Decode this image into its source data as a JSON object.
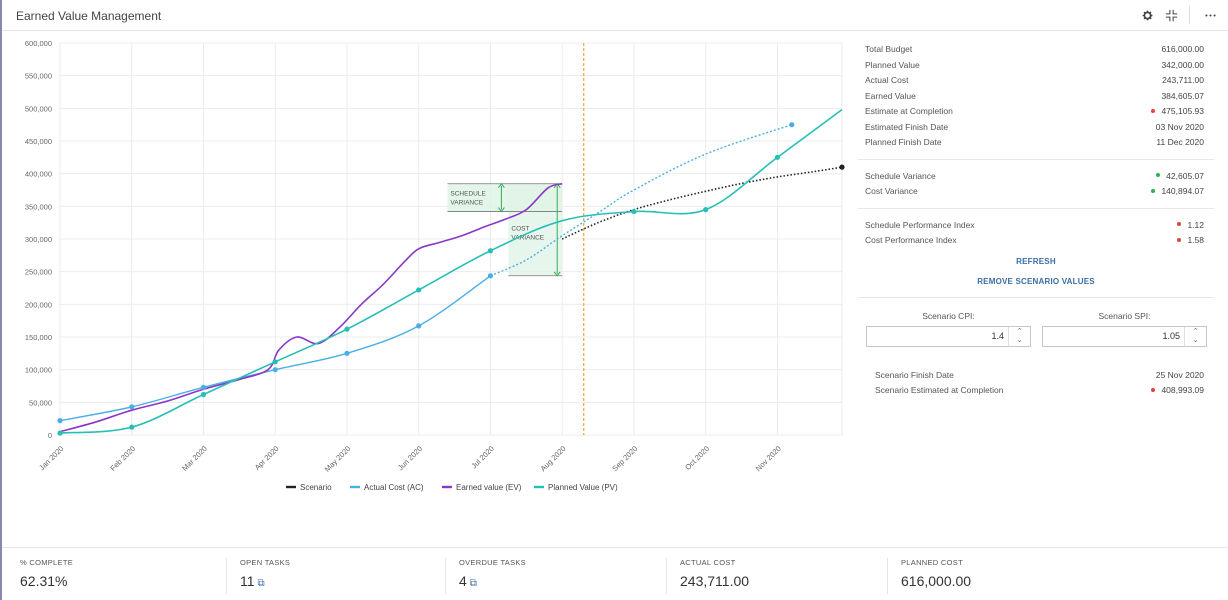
{
  "header": {
    "title": "Earned Value Management"
  },
  "chart_data": {
    "type": "line",
    "xlabel": "",
    "ylabel": "",
    "ylim": [
      0,
      600000
    ],
    "y_ticks": [
      0,
      50000,
      100000,
      150000,
      200000,
      250000,
      300000,
      350000,
      400000,
      450000,
      500000,
      550000,
      600000
    ],
    "y_tick_labels": [
      "0",
      "50,000",
      "100,000",
      "150,000",
      "200,000",
      "250,000",
      "300,000",
      "350,000",
      "400,000",
      "450,000",
      "500,000",
      "550,000",
      "600,000"
    ],
    "x_tick_labels": [
      "Jan 2020",
      "Feb 2020",
      "Mar 2020",
      "Apr 2020",
      "May 2020",
      "Jun 2020",
      "Jul 2020",
      "Aug 2020",
      "Sep 2020",
      "Oct 2020",
      "Nov 2020"
    ],
    "xlim_months": [
      0,
      10.9
    ],
    "grid": true,
    "legend_position": "bottom",
    "colors": {
      "scenario": "#222222",
      "ac": "#4aaee6",
      "ev": "#8a36c9",
      "pv": "#26bfb5",
      "today": "#f5a03a",
      "variance": "#2fae5a"
    },
    "today_marker": 7.3,
    "series": [
      {
        "name": "Scenario",
        "key": "scenario",
        "style": "dotted",
        "x": [
          7.0,
          7.5,
          8.0,
          8.5,
          9.0,
          9.5,
          10.0,
          10.5,
          10.9
        ],
        "y": [
          300000,
          325000,
          345000,
          360000,
          373000,
          385000,
          395000,
          403000,
          410000
        ]
      },
      {
        "name": "Actual Cost (AC)",
        "key": "ac",
        "x": [
          0,
          1,
          2,
          3,
          4,
          5,
          6,
          6.5,
          7,
          7.5,
          8,
          9,
          10.2
        ],
        "y": [
          22000,
          43000,
          73000,
          100000,
          125000,
          167000,
          243711,
          268000,
          305000,
          340000,
          375000,
          430000,
          475000
        ],
        "solid_until": 6,
        "markers_x": [
          0,
          1,
          2,
          3,
          4,
          5,
          6,
          10.2
        ],
        "markers_y": [
          22000,
          43000,
          73000,
          100000,
          125000,
          167000,
          243711,
          475000
        ]
      },
      {
        "name": "Earned value (EV)",
        "key": "ev",
        "x": [
          0,
          0.5,
          1,
          1.5,
          2,
          2.5,
          2.9,
          3.05,
          3.3,
          3.6,
          3.9,
          4.2,
          4.5,
          4.8,
          5.0,
          5.3,
          5.6,
          5.9,
          6.2,
          6.5,
          6.8,
          7.0
        ],
        "y": [
          5000,
          20000,
          38000,
          52000,
          70000,
          85000,
          100000,
          130000,
          150000,
          140000,
          165000,
          200000,
          230000,
          265000,
          285000,
          295000,
          305000,
          318000,
          330000,
          345000,
          378000,
          384605
        ]
      },
      {
        "name": "Planned Value (PV)",
        "key": "pv",
        "x": [
          0,
          1,
          2,
          3,
          4,
          5,
          6,
          7,
          8,
          9,
          10,
          10.9
        ],
        "y": [
          3000,
          12000,
          62000,
          112000,
          162000,
          222000,
          282000,
          328000,
          342000,
          345000,
          425000,
          498000
        ],
        "markers_x": [
          0,
          1,
          2,
          3,
          4,
          5,
          6,
          8,
          9,
          10
        ],
        "markers_y": [
          3000,
          12000,
          62000,
          112000,
          162000,
          222000,
          282000,
          342000,
          345000,
          425000
        ]
      }
    ],
    "annotations": {
      "schedule_variance": {
        "label_1": "SCHEDULE",
        "label_2": "VARIANCE",
        "x0": 5.4,
        "x1": 7.0,
        "y_top": 384605,
        "y_bottom": 342000
      },
      "cost_variance": {
        "label_1": "COST",
        "label_2": "VARIANCE",
        "x0": 6.25,
        "x1": 7.0,
        "y_top": 384605,
        "y_bottom": 243711
      }
    }
  },
  "metrics": {
    "total_budget": {
      "label": "Total Budget",
      "value": "616,000.00"
    },
    "planned_value": {
      "label": "Planned Value",
      "value": "342,000.00"
    },
    "actual_cost": {
      "label": "Actual Cost",
      "value": "243,711.00"
    },
    "earned_value": {
      "label": "Earned Value",
      "value": "384,605.07"
    },
    "eac": {
      "label": "Estimate at Completion",
      "value": "475,105.93"
    },
    "est_finish": {
      "label": "Estimated Finish Date",
      "value": "03 Nov 2020"
    },
    "planned_finish": {
      "label": "Planned Finish Date",
      "value": "11 Dec 2020"
    },
    "schedule_variance": {
      "label": "Schedule Variance",
      "value": "42,605.07"
    },
    "cost_variance": {
      "label": "Cost Variance",
      "value": "140,894.07"
    },
    "spi": {
      "label": "Schedule Performance Index",
      "value": "1.12"
    },
    "cpi": {
      "label": "Cost Performance Index",
      "value": "1.58"
    }
  },
  "actions": {
    "refresh": "REFRESH",
    "remove_scenario": "REMOVE SCENARIO VALUES"
  },
  "scenario": {
    "cpi_label": "Scenario CPI:",
    "cpi_value": "1.4",
    "spi_label": "Scenario SPI:",
    "spi_value": "1.05",
    "finish_label": "Scenario Finish Date",
    "finish_value": "25 Nov 2020",
    "eac_label": "Scenario Estimated at Completion",
    "eac_value": "408,993.09"
  },
  "kpis": [
    {
      "label": "% COMPLETE",
      "value": "62.31%"
    },
    {
      "label": "OPEN TASKS",
      "value": "11"
    },
    {
      "label": "OVERDUE TASKS",
      "value": "4"
    },
    {
      "label": "ACTUAL COST",
      "value": "243,711.00"
    },
    {
      "label": "PLANNED COST",
      "value": "616,000.00"
    }
  ]
}
